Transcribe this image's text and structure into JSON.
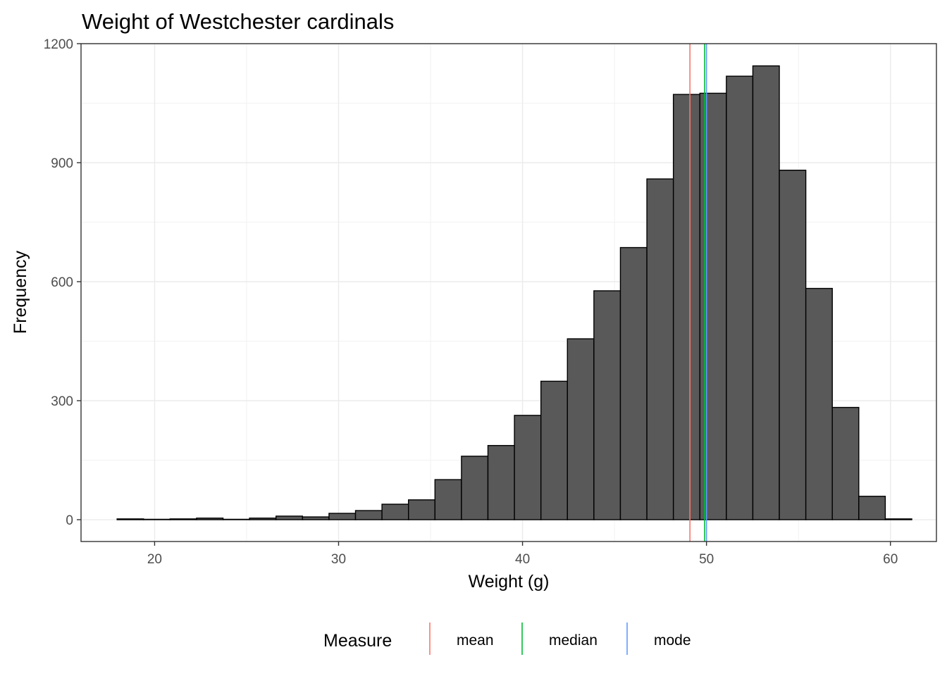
{
  "chart_data": {
    "type": "bar",
    "title": "Weight of Westchester cardinals",
    "xlabel": "Weight (g)",
    "ylabel": "Frequency",
    "xlim": [
      16,
      62.5
    ],
    "ylim": [
      -55,
      1200
    ],
    "x_ticks": [
      "20",
      "30",
      "40",
      "50",
      "60"
    ],
    "y_ticks": [
      "0",
      "300",
      "600",
      "900",
      "1200"
    ],
    "grid": true,
    "bin_width": 1.44,
    "bins": [
      {
        "x0": 17.96,
        "x1": 19.4,
        "count": 2
      },
      {
        "x0": 19.4,
        "x1": 20.84,
        "count": 1
      },
      {
        "x0": 20.84,
        "x1": 22.28,
        "count": 2
      },
      {
        "x0": 22.28,
        "x1": 23.72,
        "count": 4
      },
      {
        "x0": 23.72,
        "x1": 25.16,
        "count": 1
      },
      {
        "x0": 25.16,
        "x1": 26.6,
        "count": 4
      },
      {
        "x0": 26.6,
        "x1": 28.04,
        "count": 9
      },
      {
        "x0": 28.04,
        "x1": 29.48,
        "count": 7
      },
      {
        "x0": 29.48,
        "x1": 30.92,
        "count": 16
      },
      {
        "x0": 30.92,
        "x1": 32.36,
        "count": 23
      },
      {
        "x0": 32.36,
        "x1": 33.8,
        "count": 39
      },
      {
        "x0": 33.8,
        "x1": 35.24,
        "count": 50
      },
      {
        "x0": 35.24,
        "x1": 36.68,
        "count": 101
      },
      {
        "x0": 36.68,
        "x1": 38.12,
        "count": 160
      },
      {
        "x0": 38.12,
        "x1": 39.56,
        "count": 187
      },
      {
        "x0": 39.56,
        "x1": 41.0,
        "count": 263
      },
      {
        "x0": 41.0,
        "x1": 42.44,
        "count": 349
      },
      {
        "x0": 42.44,
        "x1": 43.88,
        "count": 456
      },
      {
        "x0": 43.88,
        "x1": 45.32,
        "count": 577
      },
      {
        "x0": 45.32,
        "x1": 46.76,
        "count": 686
      },
      {
        "x0": 46.76,
        "x1": 48.2,
        "count": 859
      },
      {
        "x0": 48.2,
        "x1": 49.64,
        "count": 1072
      },
      {
        "x0": 49.64,
        "x1": 51.08,
        "count": 1075
      },
      {
        "x0": 51.08,
        "x1": 52.52,
        "count": 1118
      },
      {
        "x0": 52.52,
        "x1": 53.96,
        "count": 1144
      },
      {
        "x0": 53.96,
        "x1": 55.4,
        "count": 881
      },
      {
        "x0": 55.4,
        "x1": 56.84,
        "count": 583
      },
      {
        "x0": 56.84,
        "x1": 58.28,
        "count": 283
      },
      {
        "x0": 58.28,
        "x1": 59.72,
        "count": 59
      },
      {
        "x0": 59.72,
        "x1": 61.16,
        "count": 2
      }
    ],
    "bar_fill": "#595959",
    "bar_stroke": "#000000",
    "reference_lines": [
      {
        "name": "mean",
        "value": 49.1,
        "color": "#F8766D"
      },
      {
        "name": "median",
        "value": 49.9,
        "color": "#00BA38"
      },
      {
        "name": "mode",
        "value": 50.0,
        "color": "#619CFF"
      }
    ],
    "legend": {
      "title": "Measure",
      "position": "bottom",
      "entries": [
        "mean",
        "median",
        "mode"
      ]
    }
  }
}
